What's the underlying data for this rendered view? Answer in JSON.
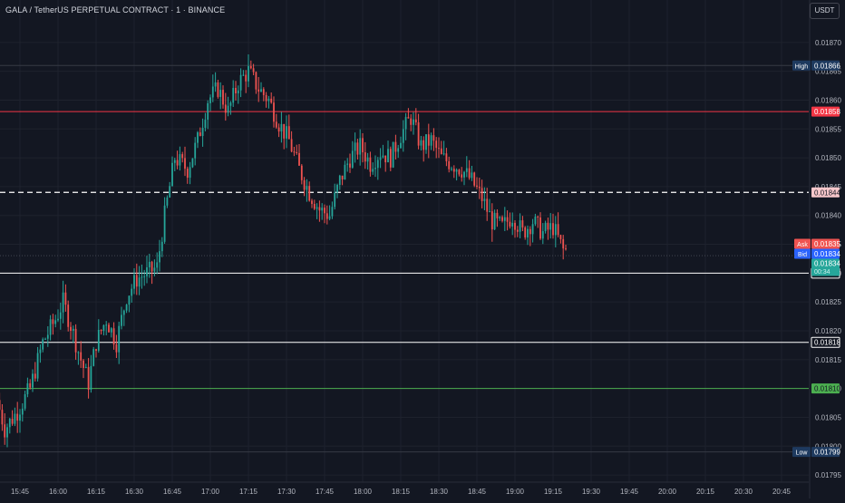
{
  "header": {
    "title": "GALA / TetherUS PERPETUAL CONTRACT · 1 · BINANCE",
    "currency_button": "USDT"
  },
  "colors": {
    "background": "#131722",
    "grid": "#1e222d",
    "candle_up": "#26a69a",
    "candle_down": "#ef5350",
    "resistance_red": "#f23645",
    "support_green": "#4caf50",
    "level_white": "#ffffff",
    "ask_label": "#ef5350",
    "bid_label": "#2962ff",
    "last_price_label": "#26a69a",
    "high_low_label": "#1e3a5f"
  },
  "chart_data": {
    "type": "candlestick",
    "symbol": "GALA / TetherUS PERPETUAL CONTRACT",
    "interval": "1",
    "exchange": "BINANCE",
    "x_ticks": [
      "15:45",
      "16:00",
      "16:15",
      "16:30",
      "16:45",
      "17:00",
      "17:15",
      "17:30",
      "17:45",
      "18:00",
      "18:15",
      "18:30",
      "18:45",
      "19:00",
      "19:15",
      "19:30",
      "19:45",
      "20:00",
      "20:15",
      "20:30",
      "20:45"
    ],
    "y_ticks": [
      "0.01870",
      "0.01865",
      "0.01860",
      "0.01855",
      "0.01850",
      "0.01845",
      "0.01840",
      "0.01835",
      "0.01830",
      "0.01825",
      "0.01820",
      "0.01815",
      "0.01810",
      "0.01805",
      "0.01800",
      "0.01795"
    ],
    "y_range": [
      0.017925,
      0.01875
    ],
    "price_path": [
      [
        "15:37",
        0.01808
      ],
      [
        "15:40",
        0.01803
      ],
      [
        "15:45",
        0.01806
      ],
      [
        "15:50",
        0.0181
      ],
      [
        "15:55",
        0.01818
      ],
      [
        "16:00",
        0.01822
      ],
      [
        "16:03",
        0.01825
      ],
      [
        "16:06",
        0.01821
      ],
      [
        "16:10",
        0.01815
      ],
      [
        "16:13",
        0.01811
      ],
      [
        "16:16",
        0.01818
      ],
      [
        "16:20",
        0.01822
      ],
      [
        "16:24",
        0.01818
      ],
      [
        "16:28",
        0.01826
      ],
      [
        "16:32",
        0.01829
      ],
      [
        "16:36",
        0.0183
      ],
      [
        "16:40",
        0.01831
      ],
      [
        "16:43",
        0.0184
      ],
      [
        "16:47",
        0.0185
      ],
      [
        "16:52",
        0.01848
      ],
      [
        "16:56",
        0.01853
      ],
      [
        "17:00",
        0.0186
      ],
      [
        "17:04",
        0.01862
      ],
      [
        "17:08",
        0.01858
      ],
      [
        "17:12",
        0.01863
      ],
      [
        "17:16",
        0.01865
      ],
      [
        "17:20",
        0.01862
      ],
      [
        "17:24",
        0.0186
      ],
      [
        "17:28",
        0.01856
      ],
      [
        "17:32",
        0.01853
      ],
      [
        "17:36",
        0.01848
      ],
      [
        "17:40",
        0.01844
      ],
      [
        "17:44",
        0.01841
      ],
      [
        "17:48",
        0.0184
      ],
      [
        "17:52",
        0.01846
      ],
      [
        "17:56",
        0.0185
      ],
      [
        "18:00",
        0.01852
      ],
      [
        "18:04",
        0.01849
      ],
      [
        "18:08",
        0.01851
      ],
      [
        "18:12",
        0.0185
      ],
      [
        "18:16",
        0.01854
      ],
      [
        "18:20",
        0.01857
      ],
      [
        "18:24",
        0.01852
      ],
      [
        "18:28",
        0.01853
      ],
      [
        "18:32",
        0.0185
      ],
      [
        "18:36",
        0.01849
      ],
      [
        "18:40",
        0.01848
      ],
      [
        "18:44",
        0.01846
      ],
      [
        "18:48",
        0.01843
      ],
      [
        "18:52",
        0.01839
      ],
      [
        "18:56",
        0.01838
      ],
      [
        "19:00",
        0.0184
      ],
      [
        "19:04",
        0.01837
      ],
      [
        "19:08",
        0.01839
      ],
      [
        "19:12",
        0.01837
      ],
      [
        "19:16",
        0.01838
      ],
      [
        "19:20",
        0.01834
      ]
    ],
    "horizontal_levels": [
      {
        "price": "0.01858",
        "style": "solid",
        "color": "#f23645"
      },
      {
        "price": "0.01844",
        "style": "dashed",
        "color": "#ffffff"
      },
      {
        "price": "0.01830",
        "style": "solid",
        "color": "#ffffff"
      },
      {
        "price": "0.01818",
        "style": "solid",
        "color": "#ffffff"
      },
      {
        "price": "0.01810",
        "style": "solid",
        "color": "#4caf50"
      }
    ],
    "high": {
      "label": "High",
      "price": "0.01866"
    },
    "low": {
      "label": "Low",
      "price": "0.01799"
    },
    "ask": {
      "label": "Ask",
      "price": "0.01835"
    },
    "bid": {
      "label": "Bid",
      "price": "0.01834"
    },
    "last": {
      "price": "0.01834",
      "countdown": "00:34"
    }
  }
}
